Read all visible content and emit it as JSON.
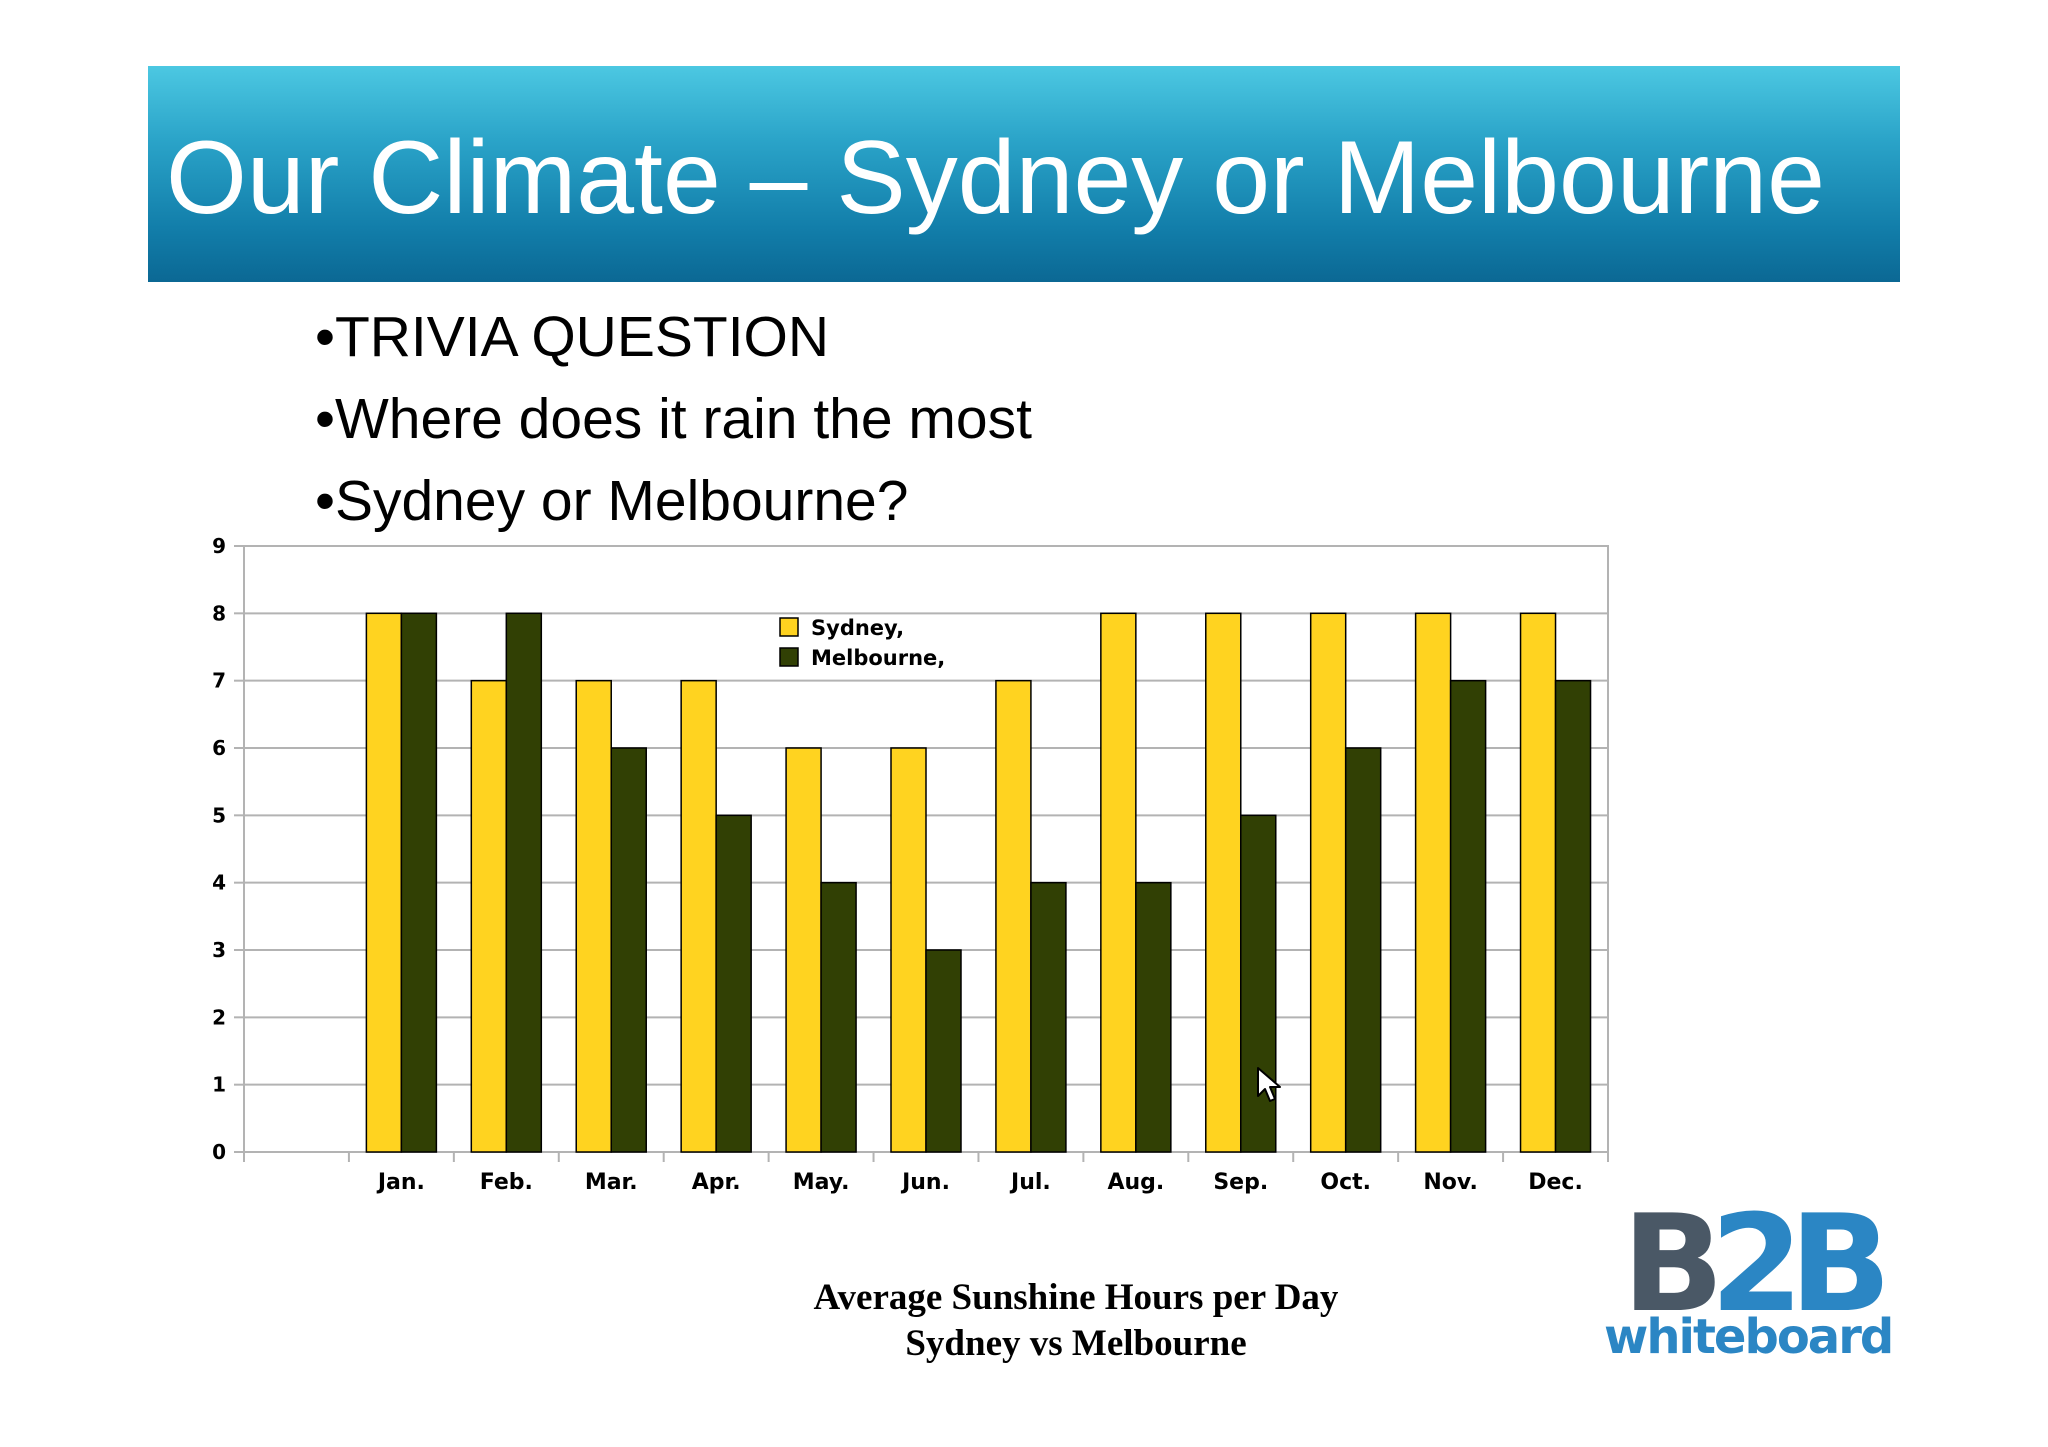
{
  "slide": {
    "title": "Our Climate – Sydney or Melbourne",
    "bullets": [
      "•TRIVIA QUESTION",
      "•Where does it rain the most",
      "•Sydney or Melbourne?"
    ],
    "caption_line1": "Average Sunshine Hours per Day",
    "caption_line2": "Sydney vs Melbourne",
    "logo_mark": "B2B",
    "logo_word": "whiteboard",
    "title_bar_color": "#1a86b4"
  },
  "chart_data": {
    "type": "bar",
    "categories": [
      "Jan.",
      "Feb.",
      "Mar.",
      "Apr.",
      "May.",
      "Jun.",
      "Jul.",
      "Aug.",
      "Sep.",
      "Oct.",
      "Nov.",
      "Dec."
    ],
    "series": [
      {
        "name": "Sydney,",
        "color": "#ffd320",
        "values": [
          8,
          7,
          7,
          7,
          6,
          6,
          7,
          8,
          8,
          8,
          8,
          8
        ]
      },
      {
        "name": "Melbourne,",
        "color": "#314004",
        "values": [
          8,
          8,
          6,
          5,
          4,
          3,
          4,
          4,
          5,
          6,
          7,
          7
        ]
      }
    ],
    "ylim": [
      0,
      9
    ],
    "yticks": [
      0,
      1,
      2,
      3,
      4,
      5,
      6,
      7,
      8,
      9
    ],
    "grid": true,
    "legend": "top-center",
    "xlabel": "",
    "ylabel": ""
  }
}
